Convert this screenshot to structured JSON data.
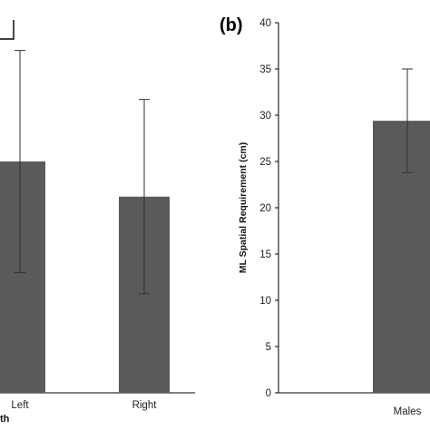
{
  "chart_data": [
    {
      "type": "bar",
      "categories": [
        "Left",
        "Right"
      ],
      "values": [
        25.0,
        21.2
      ],
      "error": [
        12.0,
        10.5
      ],
      "xlabel_fragment": "th",
      "bar_color": "#5a5a5a",
      "bracket": true
    },
    {
      "type": "bar",
      "panel_label": "(b)",
      "categories": [
        "Males"
      ],
      "values": [
        29.4
      ],
      "error": [
        5.6
      ],
      "ylabel": "ML Spatial Requirement (cm)",
      "ylim": [
        0,
        40
      ],
      "yticks": [
        "0",
        "5",
        "10",
        "15",
        "20",
        "25",
        "30",
        "35",
        "40"
      ],
      "bar_color": "#5a5a5a"
    }
  ]
}
